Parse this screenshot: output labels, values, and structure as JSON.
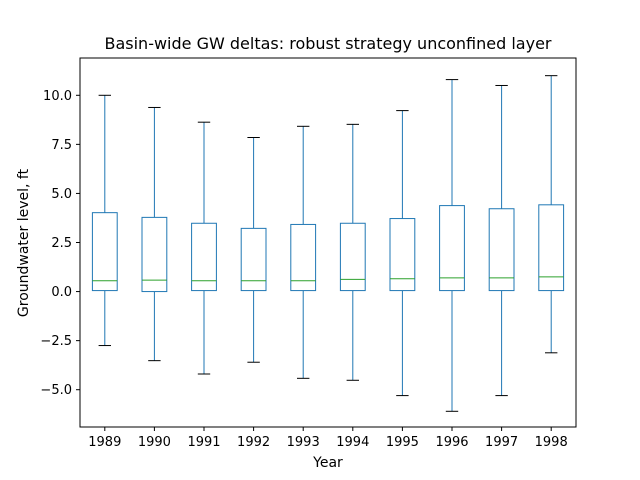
{
  "chart_data": {
    "type": "boxplot",
    "title": "Basin-wide GW deltas: robust strategy unconfined layer",
    "xlabel": "Year",
    "ylabel": "Groundwater level, ft",
    "categories": [
      "1989",
      "1990",
      "1991",
      "1992",
      "1993",
      "1994",
      "1995",
      "1996",
      "1997",
      "1998"
    ],
    "ylim": [
      -6.9,
      11.9
    ],
    "yticks": [
      -5.0,
      -2.5,
      0.0,
      2.5,
      5.0,
      7.5,
      10.0
    ],
    "ytick_labels": [
      "−5.0",
      "−2.5",
      "0.0",
      "2.5",
      "5.0",
      "7.5",
      "10.0"
    ],
    "grid": false,
    "boxes": [
      {
        "whisker_low": -2.75,
        "q1": 0.05,
        "median": 0.55,
        "q3": 4.02,
        "whisker_high": 10.0
      },
      {
        "whisker_low": -3.52,
        "q1": 0.0,
        "median": 0.58,
        "q3": 3.78,
        "whisker_high": 9.38
      },
      {
        "whisker_low": -4.2,
        "q1": 0.05,
        "median": 0.55,
        "q3": 3.48,
        "whisker_high": 8.63
      },
      {
        "whisker_low": -3.6,
        "q1": 0.05,
        "median": 0.55,
        "q3": 3.22,
        "whisker_high": 7.85
      },
      {
        "whisker_low": -4.42,
        "q1": 0.05,
        "median": 0.55,
        "q3": 3.42,
        "whisker_high": 8.42
      },
      {
        "whisker_low": -4.52,
        "q1": 0.05,
        "median": 0.62,
        "q3": 3.48,
        "whisker_high": 8.52
      },
      {
        "whisker_low": -5.3,
        "q1": 0.05,
        "median": 0.65,
        "q3": 3.72,
        "whisker_high": 9.22
      },
      {
        "whisker_low": -6.1,
        "q1": 0.05,
        "median": 0.7,
        "q3": 4.38,
        "whisker_high": 10.8
      },
      {
        "whisker_low": -5.3,
        "q1": 0.05,
        "median": 0.7,
        "q3": 4.22,
        "whisker_high": 10.5
      },
      {
        "whisker_low": -3.12,
        "q1": 0.05,
        "median": 0.75,
        "q3": 4.42,
        "whisker_high": 11.0
      }
    ],
    "colors": {
      "box": "#1f77b4",
      "median": "#2ca02c",
      "cap": "#000000",
      "axis": "#000000"
    }
  }
}
